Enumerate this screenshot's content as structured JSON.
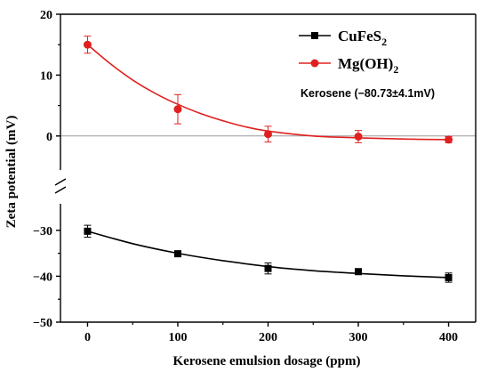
{
  "chart_data": {
    "type": "scatter",
    "xlabel": "Kerosene emulsion dosage (ppm)",
    "ylabel": "Zeta potential (mV)",
    "xlim": [
      -30,
      430
    ],
    "xticks": [
      0,
      100,
      200,
      300,
      400
    ],
    "ylim": [
      -50,
      20
    ],
    "yticks": [
      20,
      10,
      0,
      -30,
      -40,
      -50
    ],
    "axis_break": [
      -25,
      0
    ],
    "zero_reference_line": true,
    "grid": false,
    "legend_position": "top-right",
    "annotation": "Kerosene (−80.73±4.1mV)",
    "series": [
      {
        "name": "CuFeS2",
        "legend_base": "CuFeS",
        "legend_sub": "2",
        "marker": "square",
        "color": "#000000",
        "x": [
          0,
          100,
          200,
          300,
          400
        ],
        "y": [
          -30.2,
          -35.1,
          -38.3,
          -39.0,
          -40.3
        ],
        "yerr": [
          1.3,
          0.6,
          1.2,
          0.5,
          1.0
        ],
        "fit_curve": [
          [
            0,
            -30.2
          ],
          [
            50,
            -32.9
          ],
          [
            100,
            -35.0
          ],
          [
            150,
            -36.6
          ],
          [
            200,
            -37.9
          ],
          [
            250,
            -38.8
          ],
          [
            300,
            -39.4
          ],
          [
            350,
            -39.9
          ],
          [
            400,
            -40.3
          ]
        ]
      },
      {
        "name": "Mg(OH)2",
        "legend_base": "Mg(OH)",
        "legend_sub": "2",
        "marker": "circle",
        "color": "#e02020",
        "x": [
          0,
          100,
          200,
          300,
          400
        ],
        "y": [
          15.0,
          4.4,
          0.3,
          -0.1,
          -0.6
        ],
        "yerr": [
          1.4,
          2.4,
          1.3,
          1.0,
          0.5
        ],
        "fit_curve": [
          [
            0,
            15.0
          ],
          [
            25,
            11.9
          ],
          [
            50,
            9.2
          ],
          [
            75,
            7.0
          ],
          [
            100,
            5.2
          ],
          [
            125,
            3.7
          ],
          [
            150,
            2.5
          ],
          [
            175,
            1.5
          ],
          [
            200,
            0.8
          ],
          [
            250,
            0.0
          ],
          [
            300,
            -0.3
          ],
          [
            350,
            -0.5
          ],
          [
            400,
            -0.6
          ]
        ]
      }
    ]
  }
}
